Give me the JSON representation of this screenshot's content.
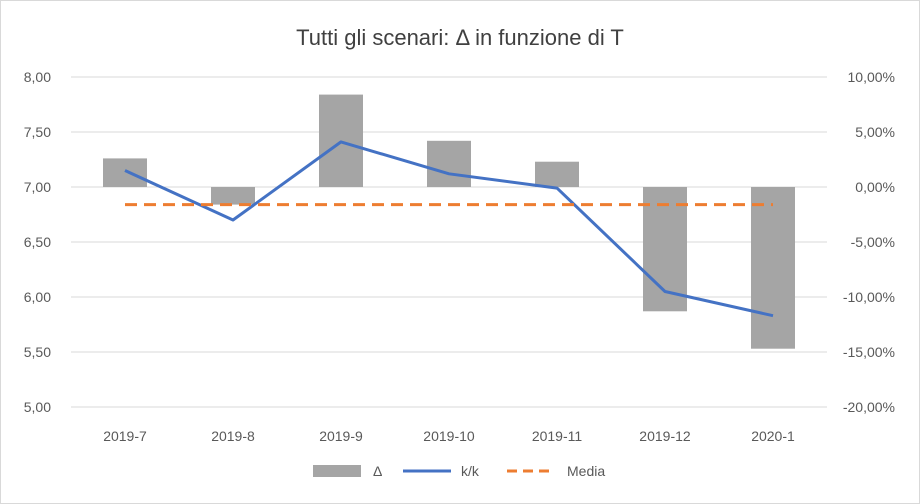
{
  "chart_data": {
    "type": "bar",
    "title": "Tutti gli scenari: Δ in funzione di T",
    "categories": [
      "2019-7",
      "2019-8",
      "2019-9",
      "2019-10",
      "2019-11",
      "2019-12",
      "2020-1"
    ],
    "y_left": {
      "ticks": [
        "8,00",
        "7,50",
        "7,00",
        "6,50",
        "6,00",
        "5,50",
        "5,00"
      ],
      "range": [
        5.0,
        8.0
      ]
    },
    "y_right": {
      "ticks": [
        "10,00%",
        "5,00%",
        "0,00%",
        "-5,00%",
        "-10,00%",
        "-15,00%",
        "-20,00%"
      ],
      "range": [
        -20,
        10
      ]
    },
    "series": [
      {
        "name": "Δ",
        "kind": "bar",
        "axis": "right",
        "color": "#a5a5a5",
        "values": [
          2.6,
          -1.6,
          8.4,
          4.2,
          2.3,
          -11.3,
          -14.7
        ]
      },
      {
        "name": "k/k",
        "kind": "line",
        "axis": "left",
        "color": "#4472c4",
        "values": [
          7.15,
          6.7,
          7.41,
          7.12,
          6.99,
          6.05,
          5.83
        ]
      },
      {
        "name": "Media",
        "kind": "dashed",
        "axis": "right",
        "color": "#ed7d31",
        "values": [
          -1.6,
          -1.6,
          -1.6,
          -1.6,
          -1.6,
          -1.6,
          -1.6
        ]
      }
    ],
    "grid": true,
    "legend_position": "bottom"
  }
}
